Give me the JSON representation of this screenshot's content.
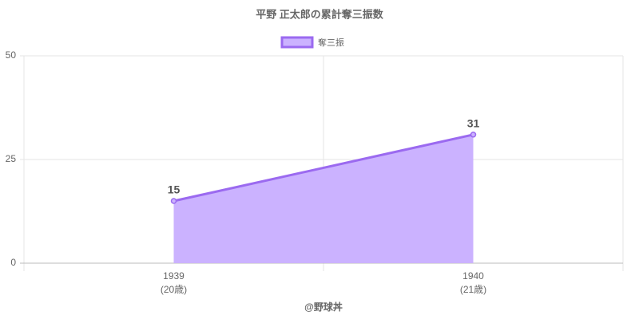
{
  "chart_data": {
    "type": "area",
    "title": "平野 正太郎の累計奪三振数",
    "categories": [
      "1939",
      "1940"
    ],
    "category_sublabels": [
      "(20歳)",
      "(21歳)"
    ],
    "series": [
      {
        "name": "奪三振",
        "color": "#9b6af0",
        "fill": "#cbb2ff",
        "values": [
          15,
          31
        ]
      }
    ],
    "ylim": [
      0,
      50
    ],
    "yticks": [
      0,
      25,
      50
    ],
    "grid": true,
    "x_axis_title": "@野球丼"
  }
}
